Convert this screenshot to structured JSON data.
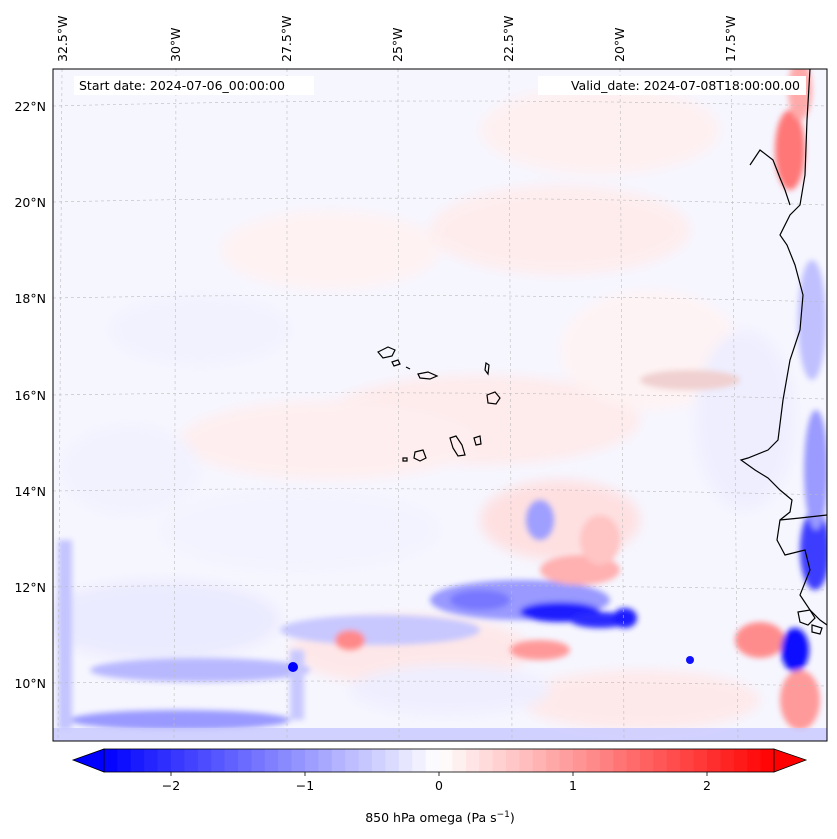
{
  "map": {
    "start_label": "Start date: 2024-07-06_00:00:00",
    "valid_label": "Valid_date: 2024-07-08T18:00:00.00",
    "lon_labels": [
      "32.5°W",
      "30°W",
      "27.5°W",
      "25°W",
      "22.5°W",
      "20°W",
      "17.5°W"
    ],
    "lat_labels": [
      "22°N",
      "20°N",
      "18°N",
      "16°N",
      "14°N",
      "12°N",
      "10°N"
    ],
    "extent": {
      "lon_min": -33.0,
      "lon_max": -15.6,
      "lat_min": 8.9,
      "lat_max": 22.8
    },
    "gridlines": true
  },
  "colorbar": {
    "label": "850 hPa omega (Pa s",
    "label_sup": "−1",
    "label_close": ")",
    "ticks": [
      "−2",
      "−1",
      "0",
      "1",
      "2"
    ],
    "tick_values": [
      -2,
      -1,
      0,
      1,
      2
    ],
    "range": [
      -2.5,
      2.5
    ],
    "colormap": "bwr",
    "extend": "both"
  },
  "colors": {
    "negative": "#0000ff",
    "positive": "#ff0000",
    "neutral": "#ffffff",
    "coast": "#000000",
    "grid": "#bbbbbb"
  }
}
